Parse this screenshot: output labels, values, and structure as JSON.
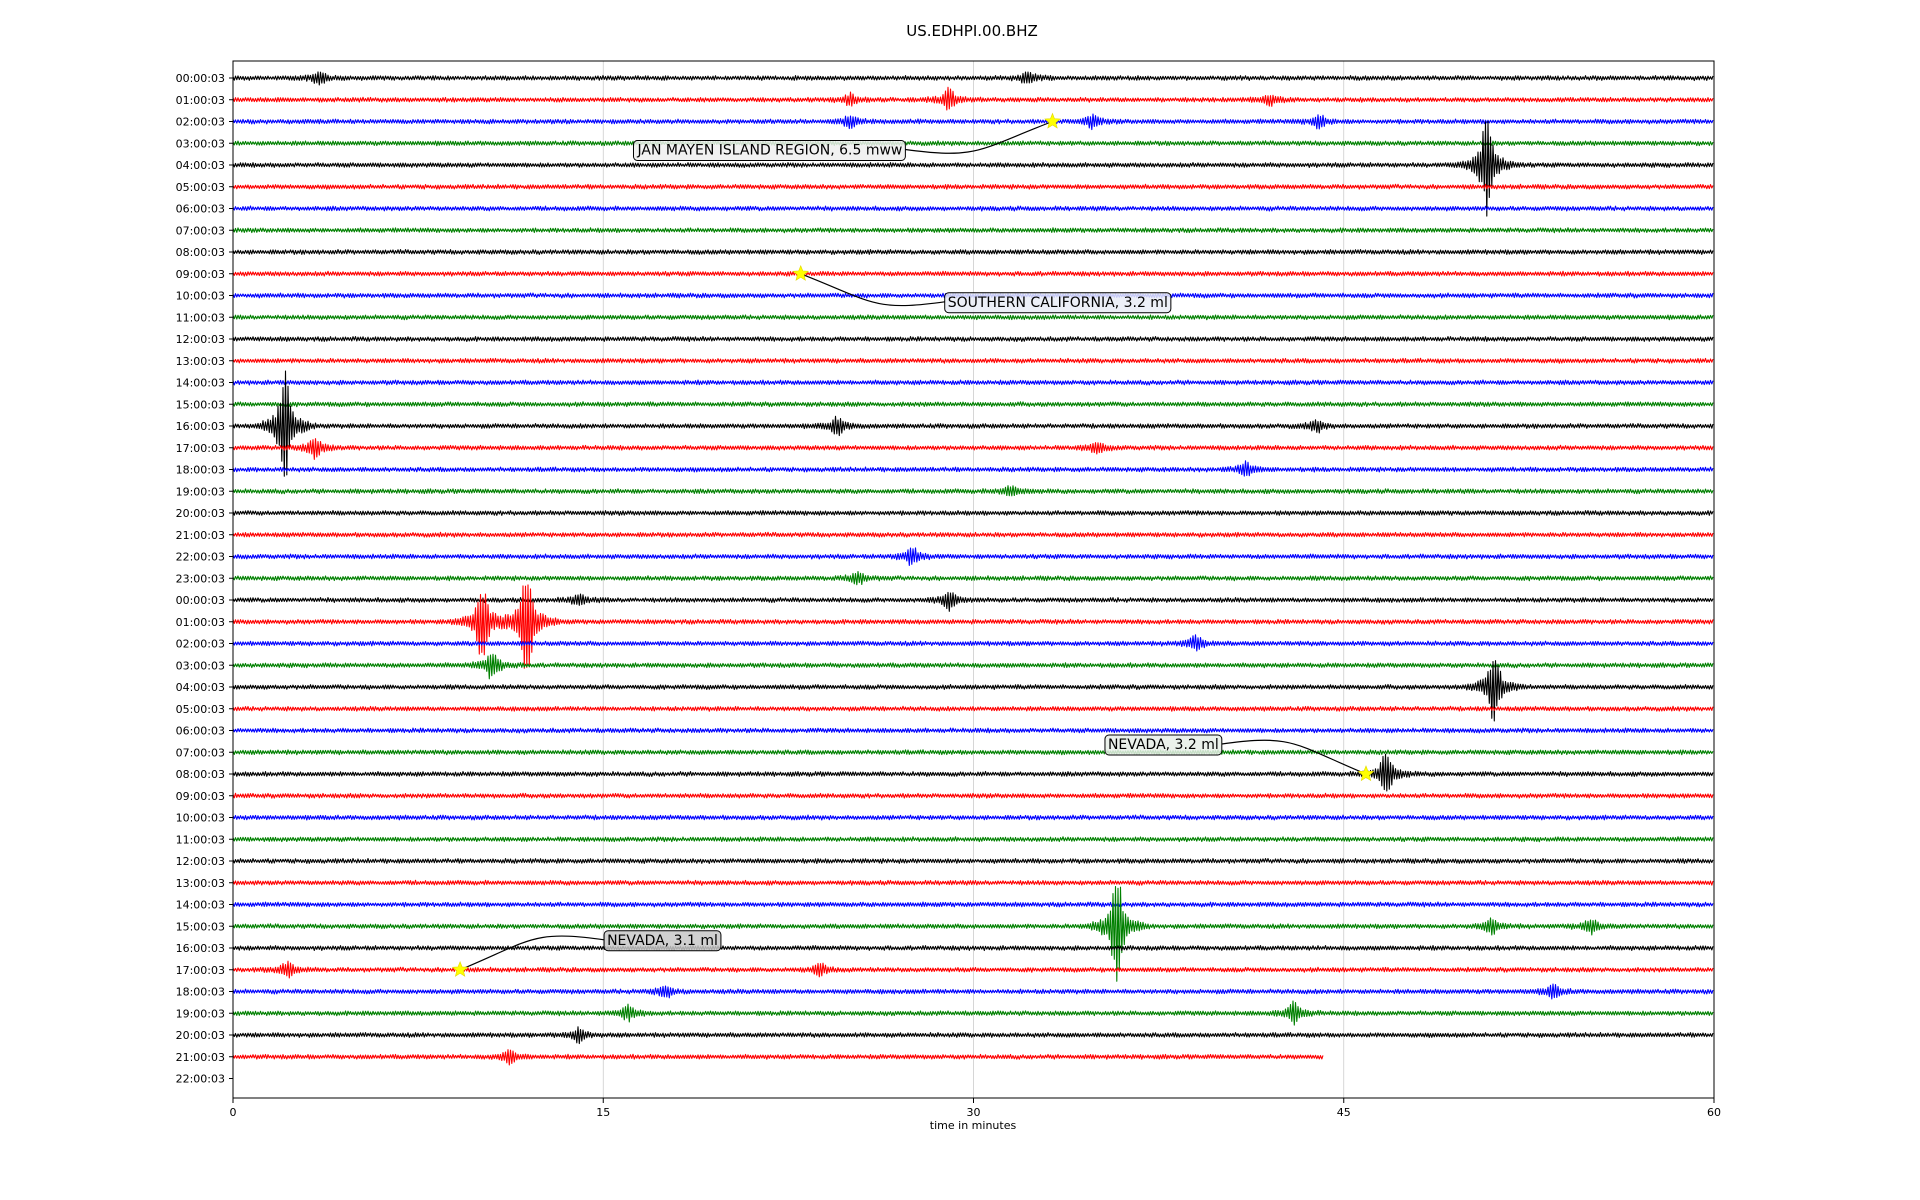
{
  "chart_data": {
    "type": "line",
    "title": "US.EDHPI.00.BHZ",
    "xlabel": "time in minutes",
    "ylabel": "",
    "xlim": [
      0,
      60
    ],
    "xticks": [
      0,
      15,
      30,
      45,
      60
    ],
    "xtick_labels": [
      "0",
      "15",
      "30",
      "45",
      "60"
    ],
    "grid": "vertical lines at 15, 30, 45",
    "trace_colors": [
      "#000000",
      "#ff0000",
      "#0000ff",
      "#008000"
    ],
    "hour_labels": [
      "00:00:03",
      "01:00:03",
      "02:00:03",
      "03:00:03",
      "04:00:03",
      "05:00:03",
      "06:00:03",
      "07:00:03",
      "08:00:03",
      "09:00:03",
      "10:00:03",
      "11:00:03",
      "12:00:03",
      "13:00:03",
      "14:00:03",
      "15:00:03",
      "16:00:03",
      "17:00:03",
      "18:00:03",
      "19:00:03",
      "20:00:03",
      "21:00:03",
      "22:00:03",
      "23:00:03",
      "00:00:03",
      "01:00:03",
      "02:00:03",
      "03:00:03",
      "04:00:03",
      "05:00:03",
      "06:00:03",
      "07:00:03",
      "08:00:03",
      "09:00:03",
      "10:00:03",
      "11:00:03",
      "12:00:03",
      "13:00:03",
      "14:00:03",
      "15:00:03",
      "16:00:03",
      "17:00:03",
      "18:00:03",
      "19:00:03",
      "20:00:03",
      "21:00:03",
      "22:00:03"
    ],
    "last_trace_end_minutes": 44.2,
    "signals": [
      {
        "row": 0,
        "minute": 3.5,
        "amp": 0.35
      },
      {
        "row": 0,
        "minute": 32.2,
        "amp": 0.35
      },
      {
        "row": 1,
        "minute": 29,
        "amp": 0.6
      },
      {
        "row": 1,
        "minute": 25,
        "amp": 0.3
      },
      {
        "row": 1,
        "minute": 42,
        "amp": 0.3
      },
      {
        "row": 2,
        "minute": 25,
        "amp": 0.3
      },
      {
        "row": 2,
        "minute": 34.8,
        "amp": 0.35
      },
      {
        "row": 2,
        "minute": 44,
        "amp": 0.35
      },
      {
        "row": 4,
        "minute": 50.8,
        "amp": 2.8
      },
      {
        "row": 16,
        "minute": 2.1,
        "amp": 3.2
      },
      {
        "row": 16,
        "minute": 24.5,
        "amp": 0.5
      },
      {
        "row": 16,
        "minute": 43.9,
        "amp": 0.3
      },
      {
        "row": 17,
        "minute": 3.3,
        "amp": 0.6
      },
      {
        "row": 17,
        "minute": 35,
        "amp": 0.3
      },
      {
        "row": 18,
        "minute": 41,
        "amp": 0.4
      },
      {
        "row": 19,
        "minute": 31.5,
        "amp": 0.3
      },
      {
        "row": 22,
        "minute": 27.5,
        "amp": 0.5
      },
      {
        "row": 23,
        "minute": 25.3,
        "amp": 0.35
      },
      {
        "row": 24,
        "minute": 29,
        "amp": 0.5
      },
      {
        "row": 24,
        "minute": 14,
        "amp": 0.3
      },
      {
        "row": 25,
        "minute": 10.1,
        "amp": 2.2
      },
      {
        "row": 25,
        "minute": 11.9,
        "amp": 3.2
      },
      {
        "row": 26,
        "minute": 39,
        "amp": 0.4
      },
      {
        "row": 27,
        "minute": 10.5,
        "amp": 0.8
      },
      {
        "row": 28,
        "minute": 51.1,
        "amp": 2.0
      },
      {
        "row": 32,
        "minute": 46.7,
        "amp": 1.2
      },
      {
        "row": 39,
        "minute": 35.8,
        "amp": 3.0
      },
      {
        "row": 39,
        "minute": 51,
        "amp": 0.4
      },
      {
        "row": 39,
        "minute": 55,
        "amp": 0.4
      },
      {
        "row": 41,
        "minute": 2.2,
        "amp": 0.4
      },
      {
        "row": 41,
        "minute": 23.8,
        "amp": 0.3
      },
      {
        "row": 42,
        "minute": 17.5,
        "amp": 0.35
      },
      {
        "row": 42,
        "minute": 53.5,
        "amp": 0.35
      },
      {
        "row": 43,
        "minute": 16,
        "amp": 0.4
      },
      {
        "row": 43,
        "minute": 43,
        "amp": 0.6
      },
      {
        "row": 44,
        "minute": 14,
        "amp": 0.4
      },
      {
        "row": 45,
        "minute": 11.2,
        "amp": 0.35
      }
    ],
    "events": [
      {
        "label": "JAN MAYEN ISLAND REGION, 6.5 mww",
        "row": 2,
        "minute": 33.2,
        "label_bg": "#eeeeee"
      },
      {
        "label": "SOUTHERN CALIFORNIA, 3.2 ml",
        "row": 9,
        "minute": 23.0,
        "label_bg": "#e9ecf6"
      },
      {
        "label": "NEVADA, 3.2 ml",
        "row": 32,
        "minute": 45.9,
        "label_bg": "#e7eee7"
      },
      {
        "label": "NEVADA, 3.1 ml",
        "row": 41,
        "minute": 9.2,
        "label_bg": "#c8c8c8"
      }
    ],
    "event_marker_color": "#ffff00"
  }
}
